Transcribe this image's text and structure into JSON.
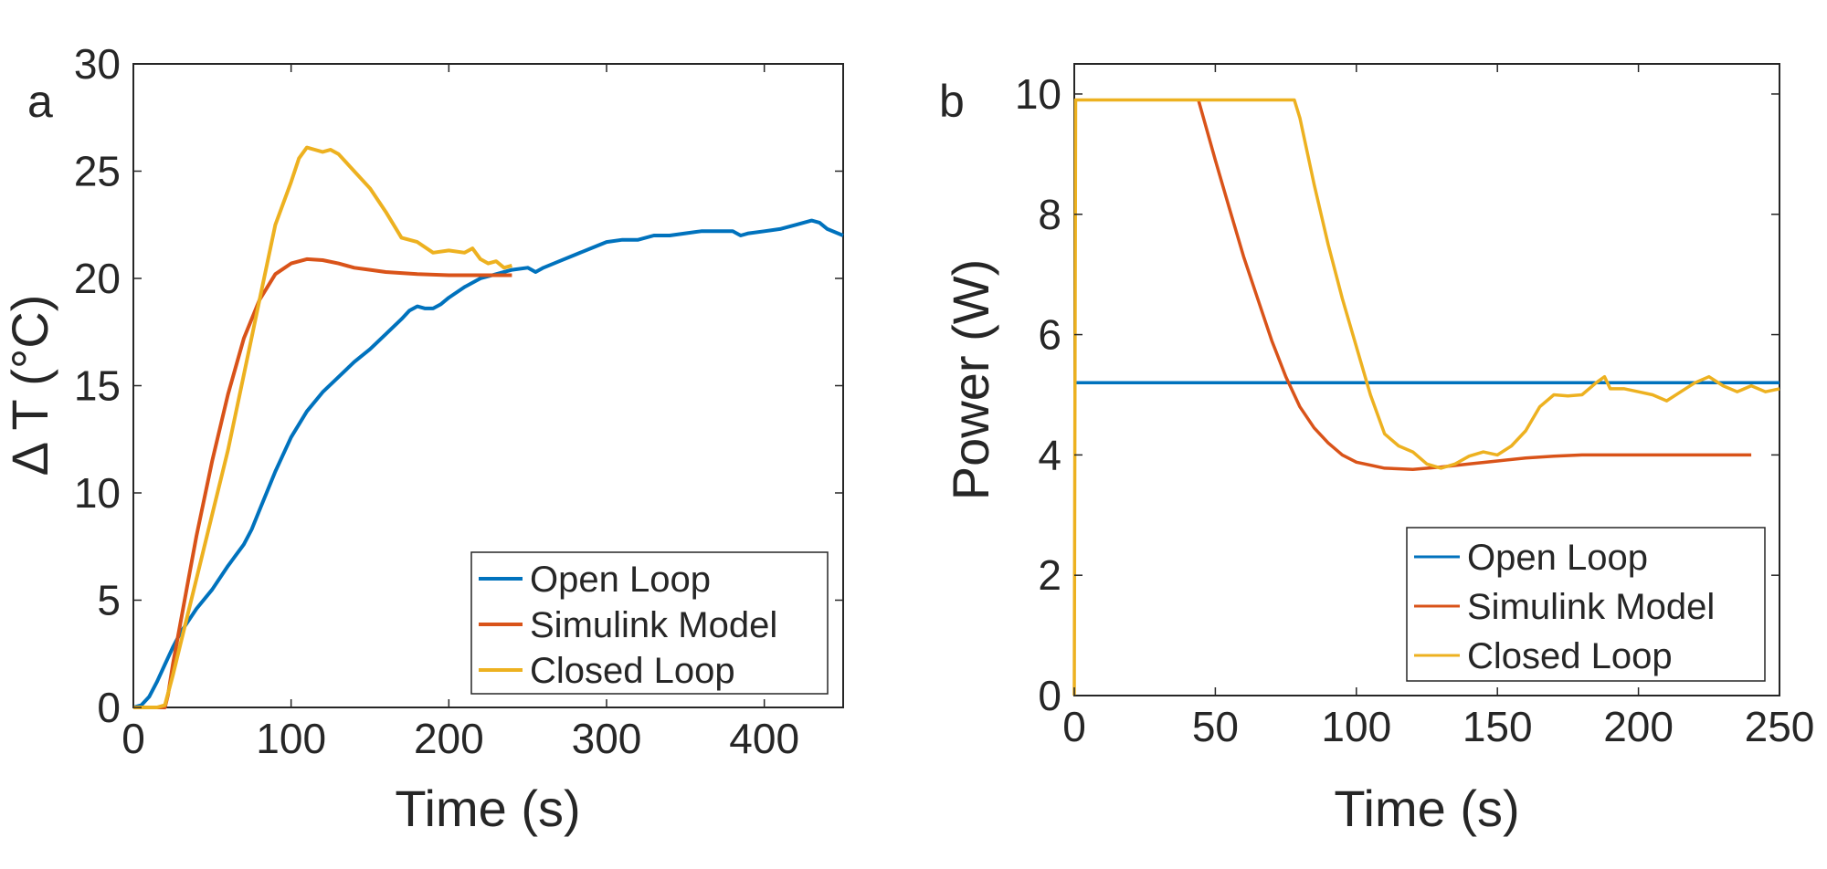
{
  "colors": {
    "open_loop": "#0072BD",
    "simulink_model": "#D95319",
    "closed_loop": "#EDB120",
    "axis": "#262626",
    "tick": "#808080"
  },
  "chart_data": [
    {
      "panel": "a",
      "type": "line",
      "xlabel": "Time (s)",
      "ylabel": "Δ T (°C)",
      "xlim": [
        0,
        450
      ],
      "ylim": [
        0,
        30
      ],
      "xticks": [
        0,
        100,
        200,
        300,
        400
      ],
      "yticks": [
        0,
        5,
        10,
        15,
        20,
        25,
        30
      ],
      "grid": false,
      "legend_position": "bottom-right",
      "series": [
        {
          "name": "Open Loop",
          "color_key": "open_loop",
          "points": [
            [
              0,
              0
            ],
            [
              5,
              0.1
            ],
            [
              10,
              0.5
            ],
            [
              15,
              1.2
            ],
            [
              20,
              2.0
            ],
            [
              25,
              2.8
            ],
            [
              30,
              3.5
            ],
            [
              40,
              4.6
            ],
            [
              50,
              5.5
            ],
            [
              60,
              6.6
            ],
            [
              70,
              7.6
            ],
            [
              75,
              8.3
            ],
            [
              80,
              9.2
            ],
            [
              90,
              11.0
            ],
            [
              100,
              12.6
            ],
            [
              110,
              13.8
            ],
            [
              120,
              14.7
            ],
            [
              130,
              15.4
            ],
            [
              140,
              16.1
            ],
            [
              150,
              16.7
            ],
            [
              160,
              17.4
            ],
            [
              170,
              18.1
            ],
            [
              175,
              18.5
            ],
            [
              180,
              18.7
            ],
            [
              185,
              18.6
            ],
            [
              190,
              18.6
            ],
            [
              195,
              18.8
            ],
            [
              200,
              19.1
            ],
            [
              210,
              19.6
            ],
            [
              220,
              20.0
            ],
            [
              230,
              20.2
            ],
            [
              240,
              20.4
            ],
            [
              250,
              20.5
            ],
            [
              255,
              20.3
            ],
            [
              260,
              20.5
            ],
            [
              270,
              20.8
            ],
            [
              280,
              21.1
            ],
            [
              290,
              21.4
            ],
            [
              300,
              21.7
            ],
            [
              310,
              21.8
            ],
            [
              320,
              21.8
            ],
            [
              330,
              22.0
            ],
            [
              340,
              22.0
            ],
            [
              350,
              22.1
            ],
            [
              360,
              22.2
            ],
            [
              370,
              22.2
            ],
            [
              380,
              22.2
            ],
            [
              385,
              22.0
            ],
            [
              390,
              22.1
            ],
            [
              400,
              22.2
            ],
            [
              410,
              22.3
            ],
            [
              420,
              22.5
            ],
            [
              430,
              22.7
            ],
            [
              435,
              22.6
            ],
            [
              440,
              22.3
            ],
            [
              450,
              22.0
            ]
          ]
        },
        {
          "name": "Simulink Model",
          "color_key": "simulink_model",
          "points": [
            [
              0,
              0
            ],
            [
              15,
              0
            ],
            [
              20,
              0
            ],
            [
              22,
              0.6
            ],
            [
              25,
              2.0
            ],
            [
              30,
              4.0
            ],
            [
              35,
              6.0
            ],
            [
              40,
              8.0
            ],
            [
              50,
              11.5
            ],
            [
              60,
              14.6
            ],
            [
              70,
              17.2
            ],
            [
              80,
              19.0
            ],
            [
              90,
              20.2
            ],
            [
              100,
              20.7
            ],
            [
              110,
              20.9
            ],
            [
              120,
              20.85
            ],
            [
              130,
              20.7
            ],
            [
              140,
              20.5
            ],
            [
              150,
              20.4
            ],
            [
              160,
              20.3
            ],
            [
              180,
              20.2
            ],
            [
              200,
              20.15
            ],
            [
              220,
              20.15
            ],
            [
              240,
              20.15
            ]
          ]
        },
        {
          "name": "Closed Loop",
          "color_key": "closed_loop",
          "points": [
            [
              0,
              0
            ],
            [
              15,
              0
            ],
            [
              20,
              0.1
            ],
            [
              25,
              1.5
            ],
            [
              30,
              3.0
            ],
            [
              40,
              6.0
            ],
            [
              50,
              9.0
            ],
            [
              60,
              12.0
            ],
            [
              70,
              15.5
            ],
            [
              80,
              19.0
            ],
            [
              90,
              22.5
            ],
            [
              100,
              24.5
            ],
            [
              105,
              25.6
            ],
            [
              110,
              26.1
            ],
            [
              115,
              26.0
            ],
            [
              120,
              25.9
            ],
            [
              125,
              26.0
            ],
            [
              130,
              25.8
            ],
            [
              140,
              25.0
            ],
            [
              150,
              24.2
            ],
            [
              160,
              23.1
            ],
            [
              170,
              21.9
            ],
            [
              180,
              21.7
            ],
            [
              190,
              21.2
            ],
            [
              200,
              21.3
            ],
            [
              210,
              21.2
            ],
            [
              215,
              21.4
            ],
            [
              220,
              20.9
            ],
            [
              225,
              20.7
            ],
            [
              230,
              20.8
            ],
            [
              235,
              20.5
            ],
            [
              240,
              20.6
            ]
          ]
        }
      ]
    },
    {
      "panel": "b",
      "type": "line",
      "xlabel": "Time (s)",
      "ylabel": "Power (W)",
      "xlim": [
        0,
        250
      ],
      "ylim": [
        0,
        10.5
      ],
      "xticks": [
        0,
        50,
        100,
        150,
        200,
        250
      ],
      "yticks": [
        0,
        2,
        4,
        6,
        8,
        10
      ],
      "grid": false,
      "legend_position": "bottom-right",
      "series": [
        {
          "name": "Open Loop",
          "color_key": "open_loop",
          "points": [
            [
              0,
              5.2
            ],
            [
              250,
              5.2
            ]
          ]
        },
        {
          "name": "Simulink Model",
          "color_key": "simulink_model",
          "points": [
            [
              44,
              9.9
            ],
            [
              50,
              8.9
            ],
            [
              55,
              8.1
            ],
            [
              60,
              7.3
            ],
            [
              65,
              6.6
            ],
            [
              70,
              5.9
            ],
            [
              75,
              5.3
            ],
            [
              80,
              4.8
            ],
            [
              85,
              4.45
            ],
            [
              90,
              4.2
            ],
            [
              95,
              4.0
            ],
            [
              100,
              3.88
            ],
            [
              110,
              3.78
            ],
            [
              120,
              3.76
            ],
            [
              130,
              3.8
            ],
            [
              140,
              3.85
            ],
            [
              150,
              3.9
            ],
            [
              160,
              3.95
            ],
            [
              170,
              3.98
            ],
            [
              180,
              4.0
            ],
            [
              200,
              4.0
            ],
            [
              220,
              4.0
            ],
            [
              240,
              4.0
            ]
          ]
        },
        {
          "name": "Closed Loop",
          "color_key": "closed_loop",
          "points": [
            [
              0,
              0
            ],
            [
              0.5,
              9.9
            ],
            [
              5,
              9.9
            ],
            [
              78,
              9.9
            ],
            [
              80,
              9.6
            ],
            [
              85,
              8.5
            ],
            [
              90,
              7.5
            ],
            [
              95,
              6.6
            ],
            [
              100,
              5.8
            ],
            [
              105,
              5.0
            ],
            [
              110,
              4.35
            ],
            [
              115,
              4.15
            ],
            [
              120,
              4.05
            ],
            [
              125,
              3.85
            ],
            [
              130,
              3.78
            ],
            [
              135,
              3.85
            ],
            [
              140,
              3.98
            ],
            [
              145,
              4.05
            ],
            [
              150,
              4.0
            ],
            [
              155,
              4.15
            ],
            [
              160,
              4.4
            ],
            [
              165,
              4.8
            ],
            [
              170,
              5.0
            ],
            [
              175,
              4.98
            ],
            [
              180,
              5.0
            ],
            [
              185,
              5.2
            ],
            [
              188,
              5.3
            ],
            [
              190,
              5.1
            ],
            [
              195,
              5.1
            ],
            [
              200,
              5.05
            ],
            [
              205,
              5.0
            ],
            [
              210,
              4.9
            ],
            [
              215,
              5.05
            ],
            [
              220,
              5.2
            ],
            [
              225,
              5.3
            ],
            [
              230,
              5.15
            ],
            [
              235,
              5.05
            ],
            [
              240,
              5.15
            ],
            [
              245,
              5.05
            ],
            [
              250,
              5.1
            ]
          ]
        }
      ]
    }
  ]
}
